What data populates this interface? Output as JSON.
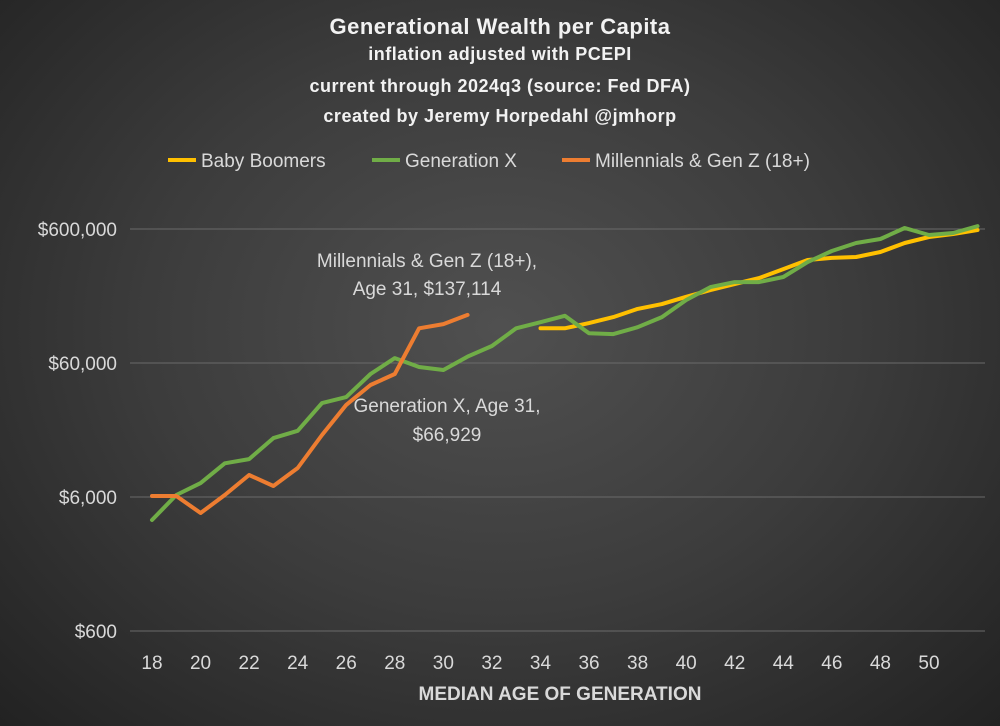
{
  "chart_data": {
    "type": "line",
    "title": "Generational Wealth per Capita",
    "subtitles": [
      "inflation adjusted with PCEPI",
      "current through 2024q3 (source: Fed DFA)",
      "created by Jeremy Horpedahl @jmhorp"
    ],
    "xlabel": "MEDIAN AGE OF GENERATION",
    "ylabel": "",
    "yscale": "log",
    "ylim": [
      600,
      600000
    ],
    "xlim": [
      18,
      52
    ],
    "x_ticks": [
      "18",
      "20",
      "22",
      "24",
      "26",
      "28",
      "30",
      "32",
      "34",
      "36",
      "38",
      "40",
      "42",
      "44",
      "46",
      "48",
      "50"
    ],
    "y_ticks": [
      {
        "value": 600,
        "label": "$600"
      },
      {
        "value": 6000,
        "label": "$6,000"
      },
      {
        "value": 60000,
        "label": "$60,000"
      },
      {
        "value": 600000,
        "label": "$600,000"
      }
    ],
    "grid": true,
    "legend_position": "top",
    "series": [
      {
        "name": "Baby Boomers",
        "color": "#ffc000",
        "x": [
          34,
          35,
          36,
          37,
          38,
          39,
          40,
          41,
          42,
          43,
          44,
          45,
          46,
          47,
          48,
          49,
          50,
          51,
          52
        ],
        "values": [
          109000,
          109000,
          119000,
          132000,
          152000,
          165000,
          187000,
          210000,
          233000,
          258000,
          301000,
          352000,
          365000,
          371000,
          404000,
          472000,
          523000,
          551000,
          590000
        ]
      },
      {
        "name": "Generation X",
        "color": "#70ad47",
        "x": [
          18,
          19,
          20,
          21,
          22,
          23,
          24,
          25,
          26,
          27,
          28,
          29,
          30,
          31,
          32,
          33,
          34,
          35,
          36,
          37,
          38,
          39,
          40,
          41,
          42,
          43,
          44,
          45,
          46,
          47,
          48,
          49,
          50,
          51,
          52
        ],
        "values": [
          4040,
          6210,
          7620,
          10700,
          11500,
          16500,
          18700,
          30100,
          33400,
          49700,
          65300,
          56000,
          53200,
          66929,
          80400,
          109000,
          121000,
          135000,
          100000,
          98600,
          111000,
          132000,
          177000,
          221000,
          241000,
          241000,
          263000,
          340000,
          411000,
          472000,
          505000,
          610000,
          541000,
          560000,
          630000
        ]
      },
      {
        "name": "Millennials & Gen Z (18+)",
        "color": "#ed7d31",
        "x": [
          18,
          19,
          20,
          21,
          22,
          23,
          24,
          25,
          26,
          27,
          28,
          29,
          30,
          31
        ],
        "values": [
          6100,
          6100,
          4560,
          6210,
          8750,
          7250,
          9870,
          17400,
          29200,
          41100,
          49700,
          109000,
          117000,
          137114
        ]
      }
    ],
    "annotations": [
      {
        "series": "Millennials & Gen Z (18+)",
        "lines": [
          "Millennials & Gen Z (18+),",
          "Age 31, $137,114"
        ]
      },
      {
        "series": "Generation X",
        "lines": [
          "Generation X, Age 31,",
          "$66,929"
        ]
      }
    ]
  }
}
